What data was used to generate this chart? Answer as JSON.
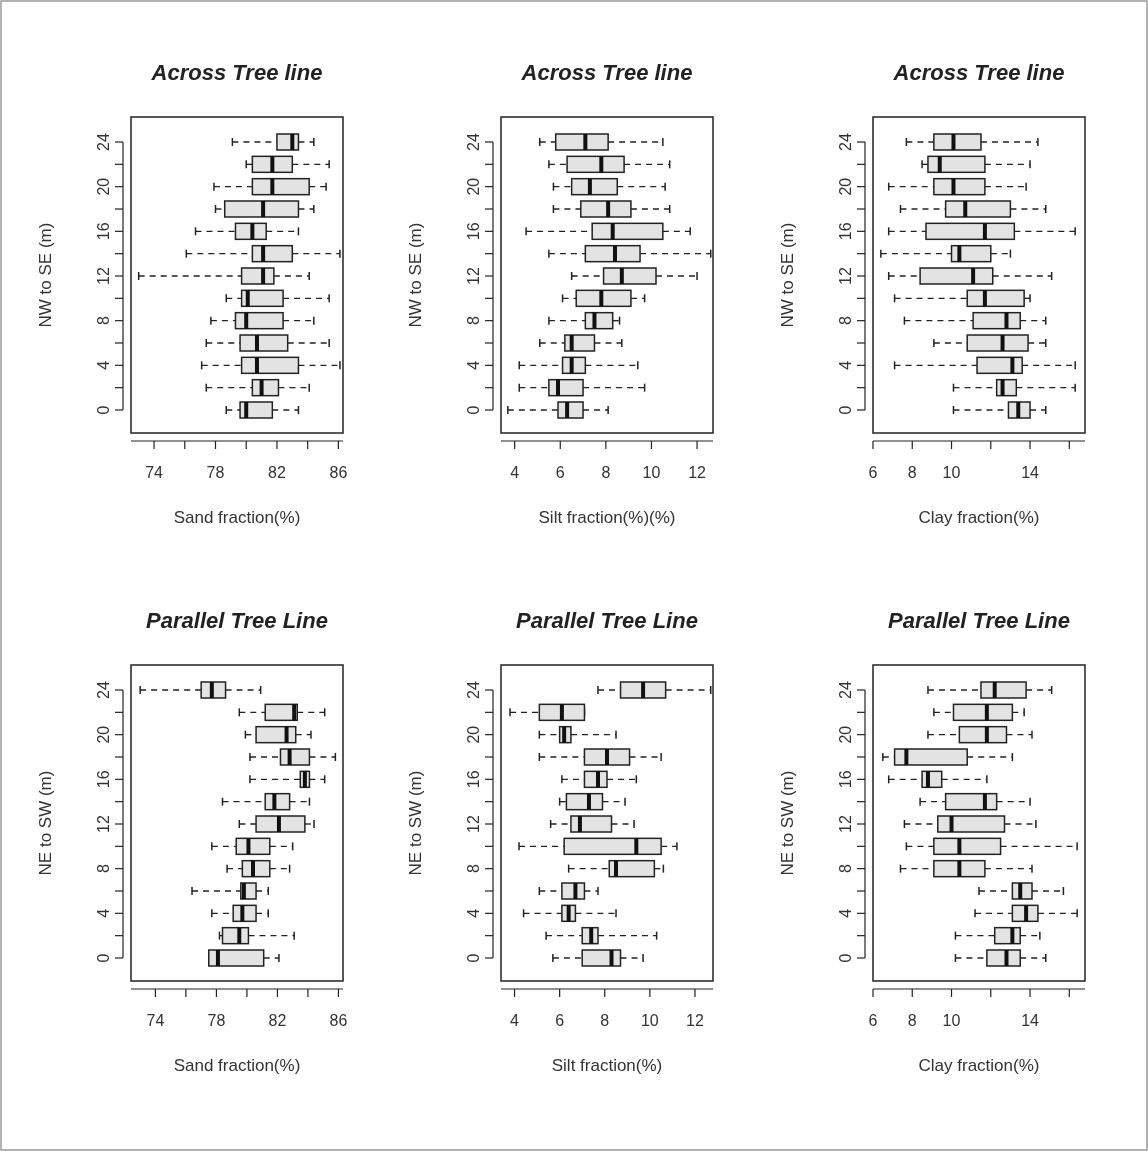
{
  "chart_data": [
    {
      "type": "box",
      "orientation": "horizontal",
      "title": "Across Tree line",
      "xlabel": "Sand fraction(%)",
      "ylabel": "NW to SE (m)",
      "color": "#e3e3e3",
      "categories": [
        "24",
        null,
        "20",
        null,
        "16",
        null,
        "12",
        null,
        "8",
        null,
        "4",
        null,
        "0"
      ],
      "xlim": [
        72.5,
        86.3
      ],
      "xticks": [
        74,
        {
          "value": 76,
          "label": null
        },
        78,
        {
          "value": 80,
          "label": null
        },
        82,
        {
          "value": 84,
          "label": null
        },
        86
      ],
      "boxes": [
        {
          "low": 79.1,
          "q1": 82.0,
          "median": 83.0,
          "q3": 83.4,
          "high": 84.4
        },
        {
          "low": 80.0,
          "q1": 80.4,
          "median": 81.7,
          "q3": 83.0,
          "high": 85.4
        },
        {
          "low": 77.9,
          "q1": 80.4,
          "median": 81.7,
          "q3": 84.1,
          "high": 85.2
        },
        {
          "low": 78.0,
          "q1": 78.6,
          "median": 81.1,
          "q3": 83.4,
          "high": 84.4
        },
        {
          "low": 76.7,
          "q1": 79.3,
          "median": 80.4,
          "q3": 81.3,
          "high": 83.4
        },
        {
          "low": 76.1,
          "q1": 80.4,
          "median": 81.1,
          "q3": 83.0,
          "high": 86.1
        },
        {
          "low": 73.0,
          "q1": 79.7,
          "median": 81.1,
          "q3": 81.8,
          "high": 84.1
        },
        {
          "low": 78.7,
          "q1": 79.7,
          "median": 80.1,
          "q3": 82.4,
          "high": 85.4
        },
        {
          "low": 77.7,
          "q1": 79.3,
          "median": 80.0,
          "q3": 82.4,
          "high": 84.4
        },
        {
          "low": 77.4,
          "q1": 79.6,
          "median": 80.7,
          "q3": 82.7,
          "high": 85.4
        },
        {
          "low": 77.1,
          "q1": 79.7,
          "median": 80.7,
          "q3": 83.4,
          "high": 86.1
        },
        {
          "low": 77.4,
          "q1": 80.4,
          "median": 81.0,
          "q3": 82.1,
          "high": 84.1
        },
        {
          "low": 78.7,
          "q1": 79.6,
          "median": 80.0,
          "q3": 81.7,
          "high": 83.4
        }
      ]
    },
    {
      "type": "box",
      "orientation": "horizontal",
      "title": "Across Tree line",
      "xlabel": "Silt fraction(%)(%)",
      "ylabel": "NW to SE (m)",
      "color": "#e3e3e3",
      "categories": [
        "24",
        null,
        "20",
        null,
        "16",
        null,
        "12",
        null,
        "8",
        null,
        "4",
        null,
        "0"
      ],
      "xlim": [
        3.4,
        12.7
      ],
      "xticks": [
        4,
        6,
        8,
        10,
        12
      ],
      "boxes": [
        {
          "low": 5.1,
          "q1": 5.8,
          "median": 7.1,
          "q3": 8.1,
          "high": 10.5
        },
        {
          "low": 5.5,
          "q1": 6.3,
          "median": 7.8,
          "q3": 8.8,
          "high": 10.8
        },
        {
          "low": 5.7,
          "q1": 6.5,
          "median": 7.3,
          "q3": 8.5,
          "high": 10.6
        },
        {
          "low": 5.7,
          "q1": 6.9,
          "median": 8.1,
          "q3": 9.1,
          "high": 10.8
        },
        {
          "low": 4.5,
          "q1": 7.4,
          "median": 8.3,
          "q3": 10.5,
          "high": 11.7
        },
        {
          "low": 5.5,
          "q1": 7.1,
          "median": 8.4,
          "q3": 9.5,
          "high": 12.6
        },
        {
          "low": 6.5,
          "q1": 7.9,
          "median": 8.7,
          "q3": 10.2,
          "high": 12.0
        },
        {
          "low": 6.1,
          "q1": 6.7,
          "median": 7.8,
          "q3": 9.1,
          "high": 9.7
        },
        {
          "low": 5.5,
          "q1": 7.1,
          "median": 7.5,
          "q3": 8.3,
          "high": 8.6
        },
        {
          "low": 5.1,
          "q1": 6.2,
          "median": 6.5,
          "q3": 7.5,
          "high": 8.7
        },
        {
          "low": 4.2,
          "q1": 6.1,
          "median": 6.5,
          "q3": 7.1,
          "high": 9.4
        },
        {
          "low": 4.2,
          "q1": 5.5,
          "median": 5.9,
          "q3": 7.0,
          "high": 9.7
        },
        {
          "low": 3.7,
          "q1": 5.9,
          "median": 6.3,
          "q3": 7.0,
          "high": 8.1
        }
      ]
    },
    {
      "type": "box",
      "orientation": "horizontal",
      "title": "Across Tree line",
      "xlabel": "Clay fraction(%)",
      "ylabel": "NW to SE (m)",
      "color": "#e3e3e3",
      "categories": [
        "24",
        null,
        "20",
        null,
        "16",
        null,
        "12",
        null,
        "8",
        null,
        "4",
        null,
        "0"
      ],
      "xlim": [
        6,
        16.8
      ],
      "xticks": [
        6,
        8,
        10,
        {
          "value": 12,
          "label": null
        },
        14,
        {
          "value": 16,
          "label": null
        }
      ],
      "boxes": [
        {
          "low": 7.7,
          "q1": 9.1,
          "median": 10.1,
          "q3": 11.5,
          "high": 14.4
        },
        {
          "low": 8.5,
          "q1": 8.8,
          "median": 9.4,
          "q3": 11.7,
          "high": 14.0
        },
        {
          "low": 6.8,
          "q1": 9.1,
          "median": 10.1,
          "q3": 11.7,
          "high": 13.8
        },
        {
          "low": 7.4,
          "q1": 9.7,
          "median": 10.7,
          "q3": 13.0,
          "high": 14.8
        },
        {
          "low": 6.8,
          "q1": 8.7,
          "median": 11.7,
          "q3": 13.2,
          "high": 16.3
        },
        {
          "low": 6.4,
          "q1": 10.0,
          "median": 10.4,
          "q3": 12.0,
          "high": 13.0
        },
        {
          "low": 6.8,
          "q1": 8.4,
          "median": 11.1,
          "q3": 12.1,
          "high": 15.1
        },
        {
          "low": 7.1,
          "q1": 10.8,
          "median": 11.7,
          "q3": 13.7,
          "high": 14.0
        },
        {
          "low": 7.6,
          "q1": 11.1,
          "median": 12.8,
          "q3": 13.5,
          "high": 14.8
        },
        {
          "low": 9.1,
          "q1": 10.8,
          "median": 12.6,
          "q3": 13.9,
          "high": 14.8
        },
        {
          "low": 7.1,
          "q1": 11.3,
          "median": 13.1,
          "q3": 13.6,
          "high": 16.3
        },
        {
          "low": 10.1,
          "q1": 12.3,
          "median": 12.6,
          "q3": 13.3,
          "high": 16.3
        },
        {
          "low": 10.1,
          "q1": 12.9,
          "median": 13.4,
          "q3": 14.0,
          "high": 14.8
        }
      ]
    },
    {
      "type": "box",
      "orientation": "horizontal",
      "title": "Parallel Tree Line",
      "xlabel": "Sand fraction(%)",
      "ylabel": "NE to SW (m)",
      "color": "#e3e3e3",
      "categories": [
        "24",
        null,
        "20",
        null,
        "16",
        null,
        "12",
        null,
        "8",
        null,
        "4",
        null,
        "0"
      ],
      "xlim": [
        72.4,
        86.3
      ],
      "xticks": [
        74,
        {
          "value": 76,
          "label": null
        },
        78,
        {
          "value": 80,
          "label": null
        },
        82,
        {
          "value": 84,
          "label": null
        },
        86
      ],
      "boxes": [
        {
          "low": 73.0,
          "q1": 77.0,
          "median": 77.7,
          "q3": 78.6,
          "high": 80.9
        },
        {
          "low": 79.5,
          "q1": 81.2,
          "median": 83.1,
          "q3": 83.3,
          "high": 85.1
        },
        {
          "low": 79.9,
          "q1": 80.6,
          "median": 82.6,
          "q3": 83.2,
          "high": 84.2
        },
        {
          "low": 80.2,
          "q1": 82.2,
          "median": 82.8,
          "q3": 84.1,
          "high": 85.8
        },
        {
          "low": 80.2,
          "q1": 83.5,
          "median": 83.8,
          "q3": 84.1,
          "high": 85.1
        },
        {
          "low": 78.4,
          "q1": 81.2,
          "median": 81.8,
          "q3": 82.8,
          "high": 84.1
        },
        {
          "low": 79.5,
          "q1": 80.6,
          "median": 82.1,
          "q3": 83.8,
          "high": 84.4
        },
        {
          "low": 77.7,
          "q1": 79.3,
          "median": 80.1,
          "q3": 81.5,
          "high": 83.0
        },
        {
          "low": 78.7,
          "q1": 79.7,
          "median": 80.4,
          "q3": 81.5,
          "high": 82.8
        },
        {
          "low": 76.4,
          "q1": 79.6,
          "median": 79.8,
          "q3": 80.6,
          "high": 81.4
        },
        {
          "low": 77.7,
          "q1": 79.1,
          "median": 79.7,
          "q3": 80.6,
          "high": 81.4
        },
        {
          "low": 78.2,
          "q1": 78.4,
          "median": 79.5,
          "q3": 80.1,
          "high": 83.1
        },
        {
          "low": 77.5,
          "q1": 77.5,
          "median": 78.1,
          "q3": 81.1,
          "high": 82.1
        }
      ]
    },
    {
      "type": "box",
      "orientation": "horizontal",
      "title": "Parallel Tree Line",
      "xlabel": "Silt fraction(%)",
      "ylabel": "NE to SW (m)",
      "color": "#e3e3e3",
      "categories": [
        "24",
        null,
        "20",
        null,
        "16",
        null,
        "12",
        null,
        "8",
        null,
        "4",
        null,
        "0"
      ],
      "xlim": [
        3.4,
        12.8
      ],
      "xticks": [
        4,
        6,
        8,
        10,
        12
      ],
      "boxes": [
        {
          "low": 7.7,
          "q1": 8.7,
          "median": 9.7,
          "q3": 10.7,
          "high": 12.7
        },
        {
          "low": 3.8,
          "q1": 5.1,
          "median": 6.1,
          "q3": 7.1,
          "high": 7.1
        },
        {
          "low": 5.1,
          "q1": 6.0,
          "median": 6.2,
          "q3": 6.5,
          "high": 8.5
        },
        {
          "low": 5.1,
          "q1": 7.1,
          "median": 8.1,
          "q3": 9.1,
          "high": 10.5
        },
        {
          "low": 6.1,
          "q1": 7.1,
          "median": 7.7,
          "q3": 8.1,
          "high": 9.4
        },
        {
          "low": 6.0,
          "q1": 6.3,
          "median": 7.3,
          "q3": 7.9,
          "high": 8.9
        },
        {
          "low": 5.6,
          "q1": 6.5,
          "median": 6.9,
          "q3": 8.3,
          "high": 9.3
        },
        {
          "low": 4.2,
          "q1": 6.2,
          "median": 9.4,
          "q3": 10.5,
          "high": 11.2
        },
        {
          "low": 6.4,
          "q1": 8.2,
          "median": 8.5,
          "q3": 10.2,
          "high": 10.6
        },
        {
          "low": 5.1,
          "q1": 6.1,
          "median": 6.7,
          "q3": 7.1,
          "high": 7.7
        },
        {
          "low": 4.4,
          "q1": 6.1,
          "median": 6.4,
          "q3": 6.7,
          "high": 8.5
        },
        {
          "low": 5.4,
          "q1": 7.0,
          "median": 7.4,
          "q3": 7.7,
          "high": 10.3
        },
        {
          "low": 5.7,
          "q1": 7.0,
          "median": 8.3,
          "q3": 8.7,
          "high": 9.7
        }
      ]
    },
    {
      "type": "box",
      "orientation": "horizontal",
      "title": "Parallel Tree Line",
      "xlabel": "Clay fraction(%)",
      "ylabel": "NE to SW (m)",
      "color": "#e3e3e3",
      "categories": [
        "24",
        null,
        "20",
        null,
        "16",
        null,
        "12",
        null,
        "8",
        null,
        "4",
        null,
        "0"
      ],
      "xlim": [
        6,
        16.8
      ],
      "xticks": [
        6,
        8,
        10,
        {
          "value": 12,
          "label": null
        },
        14,
        {
          "value": 16,
          "label": null
        }
      ],
      "boxes": [
        {
          "low": 8.8,
          "q1": 11.5,
          "median": 12.2,
          "q3": 13.8,
          "high": 15.1
        },
        {
          "low": 9.1,
          "q1": 10.1,
          "median": 11.8,
          "q3": 13.1,
          "high": 13.7
        },
        {
          "low": 8.8,
          "q1": 10.4,
          "median": 11.8,
          "q3": 12.8,
          "high": 14.1
        },
        {
          "low": 6.5,
          "q1": 7.1,
          "median": 7.7,
          "q3": 10.8,
          "high": 13.1
        },
        {
          "low": 6.8,
          "q1": 8.5,
          "median": 8.8,
          "q3": 9.5,
          "high": 11.8
        },
        {
          "low": 8.4,
          "q1": 9.7,
          "median": 11.7,
          "q3": 12.3,
          "high": 14.0
        },
        {
          "low": 7.6,
          "q1": 9.3,
          "median": 10.0,
          "q3": 12.7,
          "high": 14.3
        },
        {
          "low": 7.7,
          "q1": 9.1,
          "median": 10.4,
          "q3": 12.5,
          "high": 16.4
        },
        {
          "low": 7.4,
          "q1": 9.1,
          "median": 10.4,
          "q3": 11.7,
          "high": 14.1
        },
        {
          "low": 11.4,
          "q1": 13.1,
          "median": 13.5,
          "q3": 14.1,
          "high": 15.7
        },
        {
          "low": 11.2,
          "q1": 13.1,
          "median": 13.8,
          "q3": 14.4,
          "high": 16.4
        },
        {
          "low": 10.2,
          "q1": 12.2,
          "median": 13.1,
          "q3": 13.5,
          "high": 14.5
        },
        {
          "low": 10.2,
          "q1": 11.8,
          "median": 12.8,
          "q3": 13.5,
          "high": 14.8
        }
      ]
    }
  ]
}
